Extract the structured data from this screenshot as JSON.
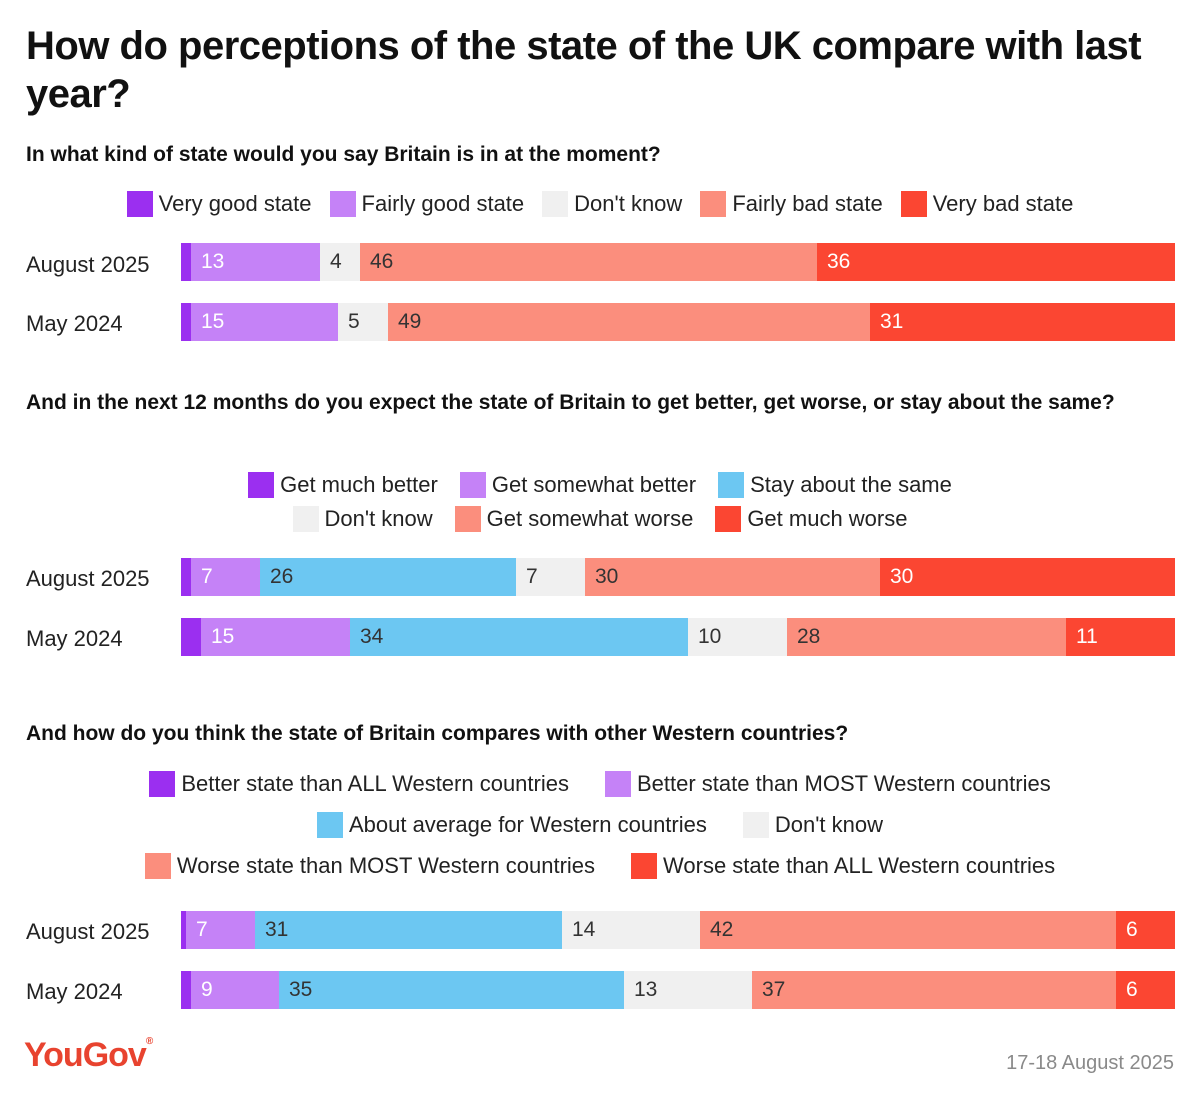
{
  "title": "How do perceptions of the state of the UK compare with last year?",
  "logo": "YouGov",
  "logo_mark": "®",
  "date": "17-18 August 2025",
  "colors": {
    "very_good": "#9b2ff0",
    "fairly_good": "#c582f7",
    "stay_same": "#6cc7f2",
    "dont_know": "#f0f0f0",
    "fairly_bad": "#fb8e7d",
    "very_bad": "#fb4632",
    "brand": "#e8432f"
  },
  "chart_data": [
    {
      "type": "bar",
      "stacked": true,
      "orientation": "horizontal",
      "title": "In what kind of state would you say Britain is in at the moment?",
      "categories": [
        "August 2025",
        "May 2024"
      ],
      "series": [
        {
          "name": "Very good state",
          "color": "very_good",
          "values": [
            1,
            1
          ],
          "labels": [
            "",
            ""
          ]
        },
        {
          "name": "Fairly good state",
          "color": "fairly_good",
          "values": [
            13,
            15
          ],
          "labels": [
            "13",
            "15"
          ]
        },
        {
          "name": "Don't know",
          "color": "dont_know",
          "values": [
            4,
            5
          ],
          "labels": [
            "4",
            "5"
          ]
        },
        {
          "name": "Fairly bad state",
          "color": "fairly_bad",
          "values": [
            46,
            49
          ],
          "labels": [
            "46",
            "49"
          ]
        },
        {
          "name": "Very bad state",
          "color": "very_bad",
          "values": [
            36,
            31
          ],
          "labels": [
            "36",
            "31"
          ]
        }
      ],
      "legend_rows": [
        [
          0,
          1,
          2,
          3,
          4
        ]
      ]
    },
    {
      "type": "bar",
      "stacked": true,
      "orientation": "horizontal",
      "title": "And in the next 12 months do you expect the state of Britain to get better, get worse, or stay about the same?",
      "categories": [
        "August 2025",
        "May 2024"
      ],
      "series": [
        {
          "name": "Get much better",
          "color": "very_good",
          "values": [
            1,
            2
          ],
          "labels": [
            "",
            ""
          ]
        },
        {
          "name": "Get somewhat better",
          "color": "fairly_good",
          "values": [
            7,
            15
          ],
          "labels": [
            "7",
            "15"
          ]
        },
        {
          "name": "Stay about the same",
          "color": "stay_same",
          "values": [
            26,
            34
          ],
          "labels": [
            "26",
            "34"
          ]
        },
        {
          "name": "Don't know",
          "color": "dont_know",
          "values": [
            7,
            10
          ],
          "labels": [
            "7",
            "10"
          ]
        },
        {
          "name": "Get somewhat worse",
          "color": "fairly_bad",
          "values": [
            30,
            28
          ],
          "labels": [
            "30",
            "28"
          ]
        },
        {
          "name": "Get much worse",
          "color": "very_bad",
          "values": [
            30,
            11
          ],
          "labels": [
            "30",
            "11"
          ]
        }
      ],
      "legend_rows": [
        [
          0,
          1,
          2
        ],
        [
          3,
          4,
          5
        ]
      ]
    },
    {
      "type": "bar",
      "stacked": true,
      "orientation": "horizontal",
      "title": "And how do you think the state of Britain compares with other Western countries?",
      "categories": [
        "August 2025",
        "May 2024"
      ],
      "series": [
        {
          "name": "Better state than ALL Western countries",
          "color": "very_good",
          "values": [
            0.5,
            1
          ],
          "labels": [
            "",
            ""
          ]
        },
        {
          "name": "Better state than MOST Western countries",
          "color": "fairly_good",
          "values": [
            7,
            9
          ],
          "labels": [
            "7",
            "9"
          ]
        },
        {
          "name": "About average for Western countries",
          "color": "stay_same",
          "values": [
            31,
            35
          ],
          "labels": [
            "31",
            "35"
          ]
        },
        {
          "name": "Don't know",
          "color": "dont_know",
          "values": [
            14,
            13
          ],
          "labels": [
            "14",
            "13"
          ]
        },
        {
          "name": "Worse state than MOST Western countries",
          "color": "fairly_bad",
          "values": [
            42,
            37
          ],
          "labels": [
            "42",
            "37"
          ]
        },
        {
          "name": "Worse state than ALL Western countries",
          "color": "very_bad",
          "values": [
            6,
            6
          ],
          "labels": [
            "6",
            "6"
          ]
        }
      ],
      "legend_rows": [
        [
          0,
          1
        ],
        [
          2,
          3
        ],
        [
          4,
          5
        ]
      ]
    }
  ]
}
